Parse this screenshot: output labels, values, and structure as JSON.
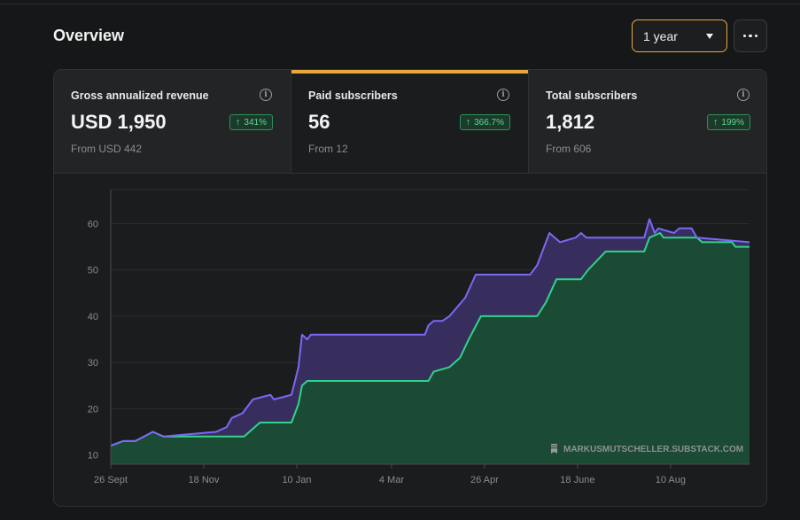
{
  "header": {
    "title": "Overview"
  },
  "range_select": {
    "label": "1 year"
  },
  "stats": [
    {
      "label": "Gross annualized revenue",
      "value": "USD 1,950",
      "change": "341%",
      "from": "From USD 442",
      "active": false
    },
    {
      "label": "Paid subscribers",
      "value": "56",
      "change": "366.7%",
      "from": "From 12",
      "active": true
    },
    {
      "label": "Total subscribers",
      "value": "1,812",
      "change": "199%",
      "from": "From 606",
      "active": false
    }
  ],
  "colors": {
    "accent": "#e9a640",
    "upper_line": "#7b68f5",
    "lower_line": "#2fd48a",
    "upper_fill": "#3a2f62",
    "lower_fill": "#1b4a35"
  },
  "chart_data": {
    "type": "area",
    "title": "",
    "xlabel": "",
    "ylabel": "",
    "ylim": [
      8,
      67
    ],
    "grid": true,
    "watermark": "MARKUSMUTSCHELLER.SUBSTACK.COM",
    "x_ticks": [
      "26 Sept",
      "18 Nov",
      "10 Jan",
      "4 Mar",
      "26 Apr",
      "18 June",
      "10 Aug"
    ],
    "y_ticks": [
      10,
      20,
      30,
      40,
      50,
      60
    ],
    "x_range": [
      "2023-09-26",
      "2024-09-24"
    ],
    "series": [
      {
        "points": [
          [
            "2023-09-26",
            12
          ],
          [
            "2023-10-03",
            13
          ],
          [
            "2023-10-10",
            13
          ],
          [
            "2023-10-15",
            14
          ],
          [
            "2023-10-20",
            15
          ],
          [
            "2023-10-26",
            14
          ],
          [
            "2023-11-25",
            15
          ],
          [
            "2023-12-01",
            16
          ],
          [
            "2023-12-04",
            18
          ],
          [
            "2023-12-10",
            19
          ],
          [
            "2023-12-16",
            22
          ],
          [
            "2023-12-26",
            23
          ],
          [
            "2023-12-28",
            22
          ],
          [
            "2024-01-07",
            23
          ],
          [
            "2024-01-11",
            29
          ],
          [
            "2024-01-13",
            36
          ],
          [
            "2024-01-16",
            35
          ],
          [
            "2024-01-18",
            36
          ],
          [
            "2024-03-23",
            36
          ],
          [
            "2024-03-25",
            38
          ],
          [
            "2024-03-28",
            39
          ],
          [
            "2024-04-02",
            39
          ],
          [
            "2024-04-06",
            40
          ],
          [
            "2024-04-15",
            44
          ],
          [
            "2024-04-21",
            49
          ],
          [
            "2024-05-22",
            49
          ],
          [
            "2024-05-26",
            51
          ],
          [
            "2024-05-31",
            56
          ],
          [
            "2024-06-02",
            58
          ],
          [
            "2024-06-08",
            56
          ],
          [
            "2024-06-17",
            57
          ],
          [
            "2024-06-20",
            58
          ],
          [
            "2024-06-23",
            57
          ],
          [
            "2024-07-26",
            57
          ],
          [
            "2024-07-29",
            61
          ],
          [
            "2024-08-01",
            58
          ],
          [
            "2024-08-03",
            59
          ],
          [
            "2024-08-12",
            58
          ],
          [
            "2024-08-15",
            59
          ],
          [
            "2024-08-22",
            59
          ],
          [
            "2024-08-25",
            57
          ],
          [
            "2024-09-24",
            56
          ]
        ]
      },
      {
        "points": [
          [
            "2023-09-26",
            12
          ],
          [
            "2023-10-03",
            13
          ],
          [
            "2023-10-10",
            13
          ],
          [
            "2023-10-15",
            14
          ],
          [
            "2023-10-20",
            15
          ],
          [
            "2023-10-26",
            14
          ],
          [
            "2023-12-11",
            14
          ],
          [
            "2023-12-14",
            15
          ],
          [
            "2023-12-20",
            17
          ],
          [
            "2024-01-07",
            17
          ],
          [
            "2024-01-11",
            21
          ],
          [
            "2024-01-13",
            25
          ],
          [
            "2024-01-16",
            26
          ],
          [
            "2024-03-25",
            26
          ],
          [
            "2024-03-28",
            28
          ],
          [
            "2024-04-06",
            29
          ],
          [
            "2024-04-12",
            31
          ],
          [
            "2024-04-17",
            35
          ],
          [
            "2024-04-24",
            40
          ],
          [
            "2024-05-26",
            40
          ],
          [
            "2024-05-31",
            43
          ],
          [
            "2024-06-06",
            48
          ],
          [
            "2024-06-20",
            48
          ],
          [
            "2024-06-24",
            50
          ],
          [
            "2024-07-04",
            54
          ],
          [
            "2024-07-26",
            54
          ],
          [
            "2024-07-29",
            57
          ],
          [
            "2024-08-04",
            58
          ],
          [
            "2024-08-06",
            57
          ],
          [
            "2024-08-25",
            57
          ],
          [
            "2024-08-28",
            56
          ],
          [
            "2024-09-14",
            56
          ],
          [
            "2024-09-16",
            55
          ],
          [
            "2024-09-24",
            55
          ]
        ]
      }
    ]
  }
}
